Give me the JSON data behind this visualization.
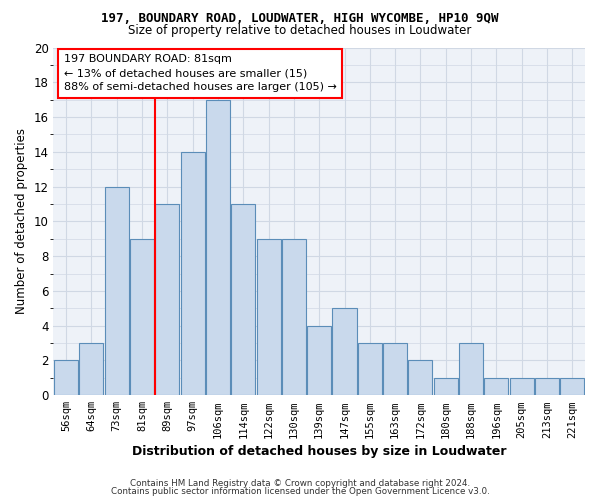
{
  "title": "197, BOUNDARY ROAD, LOUDWATER, HIGH WYCOMBE, HP10 9QW",
  "subtitle": "Size of property relative to detached houses in Loudwater",
  "xlabel": "Distribution of detached houses by size in Loudwater",
  "ylabel": "Number of detached properties",
  "bar_labels": [
    "56sqm",
    "64sqm",
    "73sqm",
    "81sqm",
    "89sqm",
    "97sqm",
    "106sqm",
    "114sqm",
    "122sqm",
    "130sqm",
    "139sqm",
    "147sqm",
    "155sqm",
    "163sqm",
    "172sqm",
    "180sqm",
    "188sqm",
    "196sqm",
    "205sqm",
    "213sqm",
    "221sqm"
  ],
  "bar_values": [
    2,
    3,
    12,
    9,
    11,
    14,
    17,
    11,
    9,
    9,
    4,
    5,
    3,
    3,
    2,
    1,
    3,
    1,
    1,
    1,
    1
  ],
  "bar_color": "#c9d9ec",
  "bar_edgecolor": "#5b8db8",
  "vline_index": 3,
  "vline_color": "red",
  "annotation_line1": "197 BOUNDARY ROAD: 81sqm",
  "annotation_line2": "← 13% of detached houses are smaller (15)",
  "annotation_line3": "88% of semi-detached houses are larger (105) →",
  "annotation_box_color": "white",
  "annotation_box_edgecolor": "red",
  "ylim": [
    0,
    20
  ],
  "yticks": [
    0,
    2,
    4,
    6,
    8,
    10,
    12,
    14,
    16,
    18,
    20
  ],
  "grid_color": "#d0d8e4",
  "background_color": "#eef2f8",
  "footer1": "Contains HM Land Registry data © Crown copyright and database right 2024.",
  "footer2": "Contains public sector information licensed under the Open Government Licence v3.0."
}
